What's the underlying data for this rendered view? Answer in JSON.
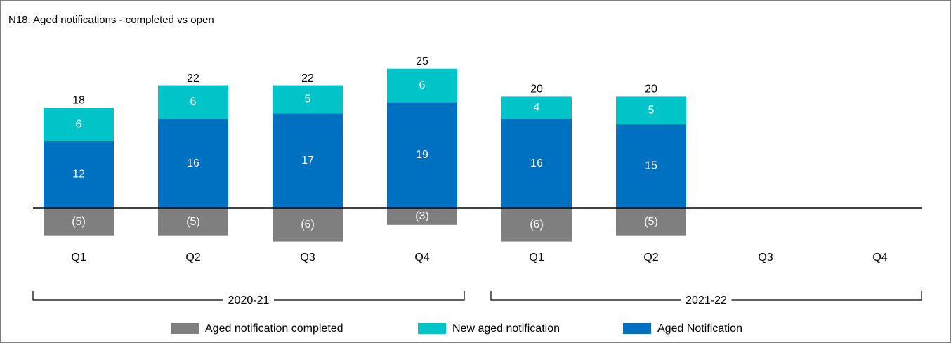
{
  "chart_data": {
    "type": "bar",
    "stacked": true,
    "title": "N18: Aged notifications - completed vs open",
    "categories": [
      "Q1",
      "Q2",
      "Q3",
      "Q4",
      "Q1",
      "Q2",
      "Q3",
      "Q4"
    ],
    "groups": [
      {
        "label": "2020-21",
        "span": 4
      },
      {
        "label": "2021-22",
        "span": 4
      }
    ],
    "series": [
      {
        "name": "Aged notification completed",
        "color": "#7f7f7f",
        "values": [
          -5,
          -5,
          -6,
          -3,
          -6,
          -5,
          null,
          null
        ],
        "value_labels": [
          "(5)",
          "(5)",
          "(6)",
          "(3)",
          "(6)",
          "(5)",
          null,
          null
        ]
      },
      {
        "name": "New aged notification",
        "color": "#00c4c8",
        "values": [
          6,
          6,
          5,
          6,
          4,
          5,
          null,
          null
        ]
      },
      {
        "name": "Aged Notification",
        "color": "#0070c0",
        "values": [
          12,
          16,
          17,
          19,
          16,
          15,
          null,
          null
        ]
      }
    ],
    "stack_order": [
      2,
      1
    ],
    "totals": [
      18,
      22,
      22,
      25,
      20,
      20,
      null,
      null
    ]
  }
}
